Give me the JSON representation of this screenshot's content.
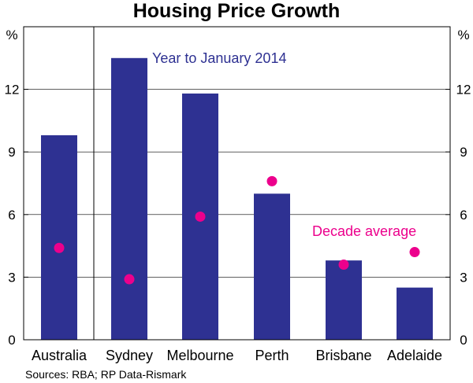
{
  "chart_data": {
    "type": "bar",
    "title": "Housing Price Growth",
    "units_left": "%",
    "units_right": "%",
    "categories": [
      "Australia",
      "Sydney",
      "Melbourne",
      "Perth",
      "Brisbane",
      "Adelaide"
    ],
    "series": [
      {
        "name": "Year to January 2014",
        "kind": "bar",
        "color": "#2e3192",
        "values": [
          9.8,
          13.5,
          11.8,
          7.0,
          3.8,
          2.5
        ]
      },
      {
        "name": "Decade average",
        "kind": "dot",
        "color": "#ec008c",
        "values": [
          4.4,
          2.9,
          5.9,
          7.6,
          3.6,
          4.2
        ]
      }
    ],
    "ylim": [
      0,
      15
    ],
    "yticks": [
      0,
      3,
      6,
      9,
      12
    ],
    "legend": {
      "bar_label": "Year to January 2014",
      "dot_label": "Decade average"
    },
    "source": "Sources: RBA; RP Data-Rismark",
    "separator_after_category": "Australia"
  }
}
